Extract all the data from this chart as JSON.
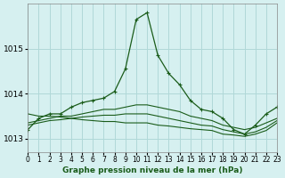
{
  "title": "Graphe pression niveau de la mer (hPa)",
  "bg_color": "#d6f0f0",
  "grid_color": "#b0d8d8",
  "line_color": "#1a5c1a",
  "xlim": [
    0,
    23
  ],
  "ylim": [
    1012.7,
    1016.0
  ],
  "yticks": [
    1013,
    1014,
    1015
  ],
  "xtick_labels": [
    "0",
    "1",
    "2",
    "3",
    "4",
    "5",
    "6",
    "7",
    "8",
    "9",
    "10",
    "11",
    "12",
    "13",
    "14",
    "15",
    "16",
    "17",
    "18",
    "19",
    "20",
    "21",
    "22",
    "23"
  ],
  "series": [
    [
      1013.2,
      1013.45,
      1013.55,
      1013.55,
      1013.7,
      1013.8,
      1013.85,
      1013.9,
      1014.05,
      1014.55,
      1015.65,
      1015.8,
      1014.85,
      1014.45,
      1014.2,
      1013.85,
      1013.65,
      1013.6,
      1013.45,
      1013.2,
      1013.1,
      1013.3,
      1013.55,
      1013.7
    ],
    [
      1013.35,
      1013.4,
      1013.45,
      1013.5,
      1013.5,
      1013.55,
      1013.6,
      1013.65,
      1013.65,
      1013.7,
      1013.75,
      1013.75,
      1013.7,
      1013.65,
      1013.6,
      1013.5,
      1013.45,
      1013.4,
      1013.3,
      1013.25,
      1013.2,
      1013.25,
      1013.35,
      1013.45
    ],
    [
      1013.3,
      1013.35,
      1013.4,
      1013.42,
      1013.45,
      1013.48,
      1013.5,
      1013.52,
      1013.52,
      1013.55,
      1013.55,
      1013.55,
      1013.5,
      1013.45,
      1013.4,
      1013.35,
      1013.3,
      1013.28,
      1013.2,
      1013.15,
      1013.1,
      1013.15,
      1013.25,
      1013.4
    ],
    [
      1013.55,
      1013.5,
      1013.5,
      1013.48,
      1013.45,
      1013.42,
      1013.4,
      1013.38,
      1013.38,
      1013.35,
      1013.35,
      1013.35,
      1013.3,
      1013.28,
      1013.25,
      1013.22,
      1013.2,
      1013.18,
      1013.1,
      1013.08,
      1013.05,
      1013.1,
      1013.18,
      1013.35
    ]
  ],
  "marker_series": [
    0
  ],
  "marker": "+"
}
